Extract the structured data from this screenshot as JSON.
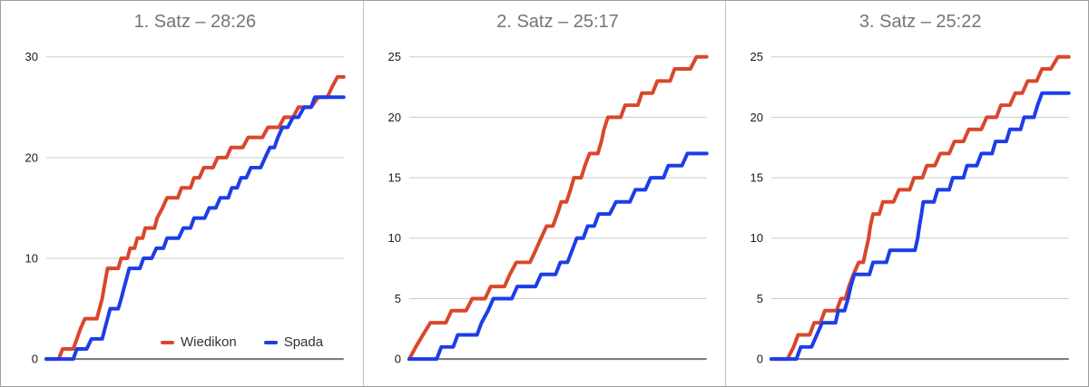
{
  "chart_data": [
    {
      "type": "line",
      "title": "1. Satz – 28:26",
      "set_label": "1. Satz",
      "final_score": "28:26",
      "xlabel": "",
      "ylabel": "",
      "x_axis_note": "unlabeled time axis, values normalized 0-100 (% of set)",
      "y_ticks": [
        0,
        10,
        20,
        30
      ],
      "ylim": [
        0,
        30
      ],
      "grid": true,
      "series": [
        {
          "name": "Wiedikon",
          "color": "#D9472B",
          "final": 28,
          "points": [
            [
              0,
              0
            ],
            [
              4.2,
              0
            ],
            [
              5.5,
              1
            ],
            [
              9.1,
              1
            ],
            [
              10.3,
              2
            ],
            [
              11.5,
              3
            ],
            [
              13,
              4
            ],
            [
              17,
              4
            ],
            [
              17.9,
              5
            ],
            [
              18.8,
              6
            ],
            [
              19.4,
              7
            ],
            [
              20,
              8
            ],
            [
              20.6,
              9
            ],
            [
              24.2,
              9
            ],
            [
              25.2,
              10
            ],
            [
              27.3,
              10
            ],
            [
              28.2,
              11
            ],
            [
              29.7,
              11
            ],
            [
              30.6,
              12
            ],
            [
              32.4,
              12
            ],
            [
              33.3,
              13
            ],
            [
              36.4,
              13
            ],
            [
              37.3,
              14
            ],
            [
              39.1,
              15
            ],
            [
              40.6,
              16
            ],
            [
              44.2,
              16
            ],
            [
              45.5,
              17
            ],
            [
              48.5,
              17
            ],
            [
              49.7,
              18
            ],
            [
              51.5,
              18
            ],
            [
              53,
              19
            ],
            [
              56.1,
              19
            ],
            [
              57.6,
              20
            ],
            [
              60.6,
              20
            ],
            [
              62.1,
              21
            ],
            [
              66.1,
              21
            ],
            [
              67.9,
              22
            ],
            [
              72.7,
              22
            ],
            [
              74.5,
              23
            ],
            [
              78.2,
              23
            ],
            [
              80,
              24
            ],
            [
              83,
              24
            ],
            [
              84.8,
              25
            ],
            [
              89.1,
              25
            ],
            [
              91.5,
              26
            ],
            [
              94.5,
              26
            ],
            [
              96.1,
              27
            ],
            [
              97.9,
              28
            ],
            [
              100,
              28
            ]
          ]
        },
        {
          "name": "Spada",
          "color": "#1C3EE8",
          "final": 26,
          "points": [
            [
              0,
              0
            ],
            [
              9.1,
              0
            ],
            [
              10.3,
              1
            ],
            [
              13.6,
              1
            ],
            [
              15.2,
              2
            ],
            [
              18.8,
              2
            ],
            [
              19.7,
              3
            ],
            [
              20.6,
              4
            ],
            [
              21.5,
              5
            ],
            [
              24.2,
              5
            ],
            [
              25.2,
              6
            ],
            [
              26.1,
              7
            ],
            [
              27,
              8
            ],
            [
              27.9,
              9
            ],
            [
              31.5,
              9
            ],
            [
              32.7,
              10
            ],
            [
              35.5,
              10
            ],
            [
              37,
              11
            ],
            [
              39.4,
              11
            ],
            [
              40.6,
              12
            ],
            [
              44.5,
              12
            ],
            [
              46.1,
              13
            ],
            [
              48.5,
              13
            ],
            [
              49.7,
              14
            ],
            [
              53.3,
              14
            ],
            [
              54.8,
              15
            ],
            [
              57,
              15
            ],
            [
              58.5,
              16
            ],
            [
              61.2,
              16
            ],
            [
              62.4,
              17
            ],
            [
              64.2,
              17
            ],
            [
              65.5,
              18
            ],
            [
              67.3,
              18
            ],
            [
              68.8,
              19
            ],
            [
              72.1,
              19
            ],
            [
              73.6,
              20
            ],
            [
              75.2,
              21
            ],
            [
              76.7,
              21
            ],
            [
              77.9,
              22
            ],
            [
              79.4,
              23
            ],
            [
              81.2,
              23
            ],
            [
              83,
              24
            ],
            [
              84.8,
              24
            ],
            [
              86.7,
              25
            ],
            [
              89.1,
              25
            ],
            [
              90.3,
              26
            ],
            [
              100,
              26
            ]
          ]
        }
      ]
    },
    {
      "type": "line",
      "title": "2. Satz – 25:17",
      "set_label": "2. Satz",
      "final_score": "25:17",
      "xlabel": "",
      "ylabel": "",
      "x_axis_note": "unlabeled time axis, values normalized 0-100 (% of set)",
      "y_ticks": [
        0,
        5,
        10,
        15,
        20,
        25
      ],
      "ylim": [
        0,
        25
      ],
      "grid": true,
      "series": [
        {
          "name": "Wiedikon",
          "color": "#D9472B",
          "final": 25,
          "points": [
            [
              0,
              0
            ],
            [
              2.2,
              1
            ],
            [
              4.6,
              2
            ],
            [
              7.1,
              3
            ],
            [
              12.3,
              3
            ],
            [
              14.2,
              4
            ],
            [
              19.1,
              4
            ],
            [
              21.2,
              5
            ],
            [
              25.5,
              5
            ],
            [
              27.4,
              6
            ],
            [
              32,
              6
            ],
            [
              33.8,
              7
            ],
            [
              36,
              8
            ],
            [
              40.6,
              8
            ],
            [
              42.5,
              9
            ],
            [
              44.3,
              10
            ],
            [
              46.2,
              11
            ],
            [
              48.3,
              11
            ],
            [
              49.8,
              12
            ],
            [
              51.1,
              13
            ],
            [
              52.9,
              13
            ],
            [
              54.2,
              14
            ],
            [
              55.4,
              15
            ],
            [
              57.8,
              15
            ],
            [
              59.1,
              16
            ],
            [
              60.6,
              17
            ],
            [
              63.4,
              17
            ],
            [
              64.6,
              18
            ],
            [
              65.5,
              19
            ],
            [
              66.8,
              20
            ],
            [
              71.1,
              20
            ],
            [
              72.6,
              21
            ],
            [
              76.9,
              21
            ],
            [
              78.2,
              22
            ],
            [
              81.8,
              22
            ],
            [
              83.4,
              23
            ],
            [
              87.7,
              23
            ],
            [
              89.2,
              24
            ],
            [
              94.5,
              24
            ],
            [
              96.6,
              25
            ],
            [
              100,
              25
            ]
          ]
        },
        {
          "name": "Spada",
          "color": "#1C3EE8",
          "final": 17,
          "points": [
            [
              0,
              0
            ],
            [
              9.2,
              0
            ],
            [
              10.8,
              1
            ],
            [
              14.8,
              1
            ],
            [
              16.3,
              2
            ],
            [
              22.8,
              2
            ],
            [
              24.3,
              3
            ],
            [
              26.5,
              4
            ],
            [
              28.3,
              5
            ],
            [
              34.5,
              5
            ],
            [
              36.3,
              6
            ],
            [
              42.5,
              6
            ],
            [
              44.3,
              7
            ],
            [
              49.2,
              7
            ],
            [
              50.8,
              8
            ],
            [
              53.2,
              8
            ],
            [
              54.8,
              9
            ],
            [
              56.3,
              10
            ],
            [
              58.5,
              10
            ],
            [
              60,
              11
            ],
            [
              62.2,
              11
            ],
            [
              63.7,
              12
            ],
            [
              67.4,
              12
            ],
            [
              69.5,
              13
            ],
            [
              74.2,
              13
            ],
            [
              76,
              14
            ],
            [
              79.4,
              14
            ],
            [
              81.2,
              15
            ],
            [
              85.5,
              15
            ],
            [
              87.1,
              16
            ],
            [
              91.7,
              16
            ],
            [
              93.5,
              17
            ],
            [
              100,
              17
            ]
          ]
        }
      ]
    },
    {
      "type": "line",
      "title": "3. Satz – 25:22",
      "set_label": "3. Satz",
      "final_score": "25:22",
      "xlabel": "",
      "ylabel": "",
      "x_axis_note": "unlabeled time axis, values normalized 0-100 (% of set)",
      "y_ticks": [
        0,
        5,
        10,
        15,
        20,
        25
      ],
      "ylim": [
        0,
        25
      ],
      "grid": true,
      "series": [
        {
          "name": "Wiedikon",
          "color": "#D9472B",
          "final": 25,
          "points": [
            [
              0,
              0
            ],
            [
              5.4,
              0
            ],
            [
              7.5,
              1
            ],
            [
              9,
              2
            ],
            [
              12.9,
              2
            ],
            [
              14.4,
              3
            ],
            [
              16.5,
              3
            ],
            [
              18,
              4
            ],
            [
              21.9,
              4
            ],
            [
              23.4,
              5
            ],
            [
              24.9,
              5
            ],
            [
              26.1,
              6
            ],
            [
              27.6,
              7
            ],
            [
              29.4,
              8
            ],
            [
              30.9,
              8
            ],
            [
              31.8,
              9
            ],
            [
              32.7,
              10
            ],
            [
              33.3,
              11
            ],
            [
              34.2,
              12
            ],
            [
              36.3,
              12
            ],
            [
              37.5,
              13
            ],
            [
              41.1,
              13
            ],
            [
              42.9,
              14
            ],
            [
              46.5,
              14
            ],
            [
              48,
              15
            ],
            [
              50.8,
              15
            ],
            [
              52.3,
              16
            ],
            [
              55,
              16
            ],
            [
              56.8,
              17
            ],
            [
              59.8,
              17
            ],
            [
              61.6,
              18
            ],
            [
              64.6,
              18
            ],
            [
              66.4,
              19
            ],
            [
              70.6,
              19
            ],
            [
              72.4,
              20
            ],
            [
              75.7,
              20
            ],
            [
              77.2,
              21
            ],
            [
              80.2,
              21
            ],
            [
              82,
              22
            ],
            [
              84.4,
              22
            ],
            [
              86.2,
              23
            ],
            [
              89.2,
              23
            ],
            [
              91,
              24
            ],
            [
              94,
              24
            ],
            [
              96.4,
              25
            ],
            [
              100,
              25
            ]
          ]
        },
        {
          "name": "Spada",
          "color": "#1C3EE8",
          "final": 22,
          "points": [
            [
              0,
              0
            ],
            [
              8.4,
              0
            ],
            [
              9.9,
              1
            ],
            [
              13.5,
              1
            ],
            [
              15.3,
              2
            ],
            [
              17.1,
              3
            ],
            [
              21.6,
              3
            ],
            [
              22.5,
              4
            ],
            [
              24.6,
              4
            ],
            [
              25.8,
              5
            ],
            [
              26.7,
              6
            ],
            [
              27.9,
              7
            ],
            [
              33,
              7
            ],
            [
              34.2,
              8
            ],
            [
              38.7,
              8
            ],
            [
              39.9,
              9
            ],
            [
              48.3,
              9
            ],
            [
              49.2,
              10
            ],
            [
              49.8,
              11
            ],
            [
              50.5,
              12
            ],
            [
              51.1,
              13
            ],
            [
              54.7,
              13
            ],
            [
              55.9,
              14
            ],
            [
              59.8,
              14
            ],
            [
              61,
              15
            ],
            [
              64.6,
              15
            ],
            [
              65.8,
              16
            ],
            [
              69.1,
              16
            ],
            [
              70.6,
              17
            ],
            [
              74.2,
              17
            ],
            [
              75.4,
              18
            ],
            [
              79,
              18
            ],
            [
              80.2,
              19
            ],
            [
              83.8,
              19
            ],
            [
              85,
              20
            ],
            [
              88.3,
              20
            ],
            [
              89.5,
              21
            ],
            [
              91,
              22
            ],
            [
              100,
              22
            ]
          ]
        }
      ]
    }
  ],
  "legend": {
    "position": "bottom-center of first chart",
    "items": [
      {
        "label": "Wiedikon",
        "color": "#D9472B"
      },
      {
        "label": "Spada",
        "color": "#1C3EE8"
      }
    ]
  },
  "style": {
    "title_color": "#757575",
    "tick_label_color": "#1a1a1a",
    "legend_text_color": "#333333",
    "gridline_color": "#cccccc",
    "baseline_color": "#757575",
    "panel_divider_color": "#c2c2c2",
    "outer_border_color": "#9e9e9e",
    "background": "#ffffff"
  }
}
